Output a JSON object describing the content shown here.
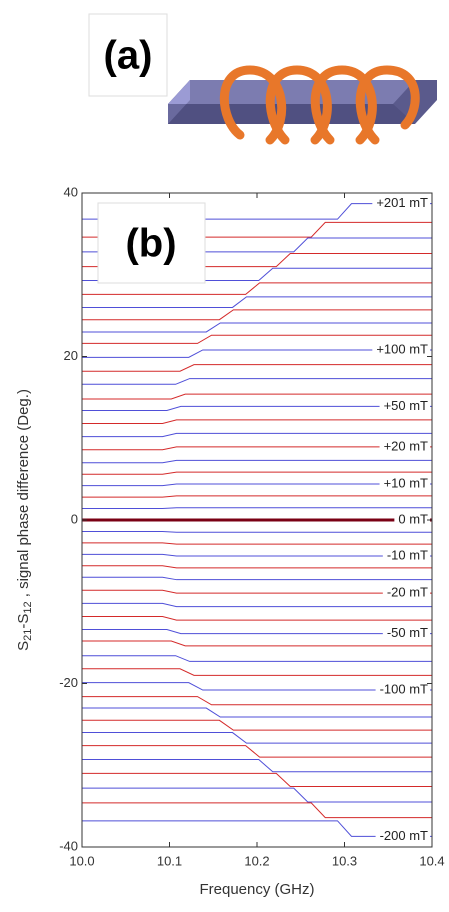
{
  "panel_a": {
    "label": "(a)"
  },
  "chart_data": {
    "type": "line",
    "panel_label": "(b)",
    "x_label": "Frequency (GHz)",
    "y_label_parts": [
      "S",
      "21",
      "-S",
      "12",
      " , signal phase difference (Deg.)"
    ],
    "xlim": [
      10.0,
      10.4
    ],
    "ylim": [
      -40,
      40
    ],
    "xticks": [
      {
        "value": 10.0,
        "label": "10.0"
      },
      10.1,
      10.2,
      10.3,
      {
        "value": 10.4,
        "label": "10.4"
      }
    ],
    "yticks": [
      -40,
      -20,
      0,
      20,
      40
    ],
    "series": [
      {
        "color": "#4f4fd8",
        "label": "+201 mT",
        "x": [
          10,
          10.292,
          10.308,
          10.4
        ],
        "values": [
          36.8,
          36.8,
          38.7,
          38.7
        ]
      },
      {
        "color": "#d42a2a",
        "x": [
          10,
          10.262,
          10.278,
          10.4
        ],
        "values": [
          34.6,
          34.6,
          36.4,
          36.4
        ]
      },
      {
        "color": "#4f4fd8",
        "x": [
          10,
          10.242,
          10.258,
          10.4
        ],
        "values": [
          32.8,
          32.8,
          34.5,
          34.5
        ]
      },
      {
        "color": "#d42a2a",
        "x": [
          10,
          10.222,
          10.238,
          10.4
        ],
        "values": [
          31,
          31,
          32.6,
          32.6
        ]
      },
      {
        "color": "#4f4fd8",
        "x": [
          10,
          10.202,
          10.218,
          10.4
        ],
        "values": [
          29.3,
          29.3,
          30.8,
          30.8
        ]
      },
      {
        "color": "#d42a2a",
        "x": [
          10,
          10.187,
          10.203,
          10.4
        ],
        "values": [
          27.6,
          27.6,
          29,
          29
        ]
      },
      {
        "color": "#4f4fd8",
        "x": [
          10,
          10.172,
          10.188,
          10.4
        ],
        "values": [
          26,
          26,
          27.3,
          27.3
        ]
      },
      {
        "color": "#d42a2a",
        "x": [
          10,
          10.157,
          10.173,
          10.4
        ],
        "values": [
          24.5,
          24.5,
          25.7,
          25.7
        ]
      },
      {
        "color": "#4f4fd8",
        "x": [
          10,
          10.142,
          10.158,
          10.4
        ],
        "values": [
          23,
          23,
          24.1,
          24.1
        ]
      },
      {
        "color": "#d42a2a",
        "x": [
          10,
          10.132,
          10.148,
          10.4
        ],
        "values": [
          21.6,
          21.6,
          22.6,
          22.6
        ]
      },
      {
        "color": "#4f4fd8",
        "label": "+100 mT",
        "x": [
          10,
          10.122,
          10.138,
          10.4
        ],
        "values": [
          19.9,
          19.9,
          20.8,
          20.8
        ]
      },
      {
        "color": "#d42a2a",
        "x": [
          10,
          10.112,
          10.128,
          10.4
        ],
        "values": [
          18.2,
          18.2,
          19,
          19
        ]
      },
      {
        "color": "#4f4fd8",
        "x": [
          10,
          10.107,
          10.123,
          10.4
        ],
        "values": [
          16.6,
          16.6,
          17.3,
          17.3
        ]
      },
      {
        "color": "#d42a2a",
        "x": [
          10,
          10.102,
          10.118,
          10.4
        ],
        "values": [
          14.8,
          14.8,
          15.4,
          15.4
        ]
      },
      {
        "color": "#4f4fd8",
        "label": "+50 mT",
        "x": [
          10,
          10.097,
          10.113,
          10.4
        ],
        "values": [
          13.4,
          13.4,
          13.9,
          13.9
        ]
      },
      {
        "color": "#d42a2a",
        "x": [
          10,
          10.092,
          10.108,
          10.4
        ],
        "values": [
          11.8,
          11.8,
          12.25,
          12.25
        ]
      },
      {
        "color": "#4f4fd8",
        "x": [
          10,
          10.092,
          10.108,
          10.4
        ],
        "values": [
          10.2,
          10.2,
          10.6,
          10.6
        ]
      },
      {
        "color": "#d42a2a",
        "label": "+20 mT",
        "x": [
          10,
          10.092,
          10.108,
          10.4
        ],
        "values": [
          8.6,
          8.6,
          8.95,
          8.95
        ]
      },
      {
        "color": "#4f4fd8",
        "x": [
          10,
          10.092,
          10.108,
          10.4
        ],
        "values": [
          7,
          7,
          7.3,
          7.3
        ]
      },
      {
        "color": "#d42a2a",
        "x": [
          10,
          10.092,
          10.108,
          10.4
        ],
        "values": [
          5.6,
          5.6,
          5.85,
          5.85
        ]
      },
      {
        "color": "#4f4fd8",
        "label": "+10 mT",
        "x": [
          10,
          10.092,
          10.108,
          10.4
        ],
        "values": [
          4.2,
          4.2,
          4.4,
          4.4
        ]
      },
      {
        "color": "#d42a2a",
        "x": [
          10,
          10.092,
          10.108,
          10.4
        ],
        "values": [
          2.8,
          2.8,
          2.95,
          2.95
        ]
      },
      {
        "color": "#4f4fd8",
        "x": [
          10,
          10.092,
          10.108,
          10.4
        ],
        "values": [
          1.4,
          1.4,
          1.5,
          1.5
        ]
      },
      {
        "color": "#7a0014",
        "label": "0 mT",
        "x": [
          10,
          10.092,
          10.108,
          10.4
        ],
        "values": [
          0,
          0,
          0,
          0
        ]
      },
      {
        "color": "#4f4fd8",
        "x": [
          10,
          10.092,
          10.108,
          10.4
        ],
        "values": [
          -1.4,
          -1.4,
          -1.5,
          -1.5
        ]
      },
      {
        "color": "#d42a2a",
        "x": [
          10,
          10.092,
          10.108,
          10.4
        ],
        "values": [
          -2.8,
          -2.8,
          -2.95,
          -2.95
        ]
      },
      {
        "color": "#4f4fd8",
        "label": "-10 mT",
        "x": [
          10,
          10.092,
          10.108,
          10.4
        ],
        "values": [
          -4.2,
          -4.2,
          -4.4,
          -4.4
        ]
      },
      {
        "color": "#d42a2a",
        "x": [
          10,
          10.092,
          10.108,
          10.4
        ],
        "values": [
          -5.6,
          -5.6,
          -5.85,
          -5.85
        ]
      },
      {
        "color": "#4f4fd8",
        "x": [
          10,
          10.092,
          10.108,
          10.4
        ],
        "values": [
          -7,
          -7,
          -7.3,
          -7.3
        ]
      },
      {
        "color": "#d42a2a",
        "label": "-20 mT",
        "x": [
          10,
          10.092,
          10.108,
          10.4
        ],
        "values": [
          -8.6,
          -8.6,
          -8.95,
          -8.95
        ]
      },
      {
        "color": "#4f4fd8",
        "x": [
          10,
          10.092,
          10.108,
          10.4
        ],
        "values": [
          -10.2,
          -10.2,
          -10.6,
          -10.6
        ]
      },
      {
        "color": "#d42a2a",
        "x": [
          10,
          10.092,
          10.108,
          10.4
        ],
        "values": [
          -11.8,
          -11.8,
          -12.25,
          -12.25
        ]
      },
      {
        "color": "#4f4fd8",
        "label": "-50 mT",
        "x": [
          10,
          10.097,
          10.113,
          10.4
        ],
        "values": [
          -13.4,
          -13.4,
          -13.9,
          -13.9
        ]
      },
      {
        "color": "#d42a2a",
        "x": [
          10,
          10.102,
          10.118,
          10.4
        ],
        "values": [
          -14.8,
          -14.8,
          -15.4,
          -15.4
        ]
      },
      {
        "color": "#4f4fd8",
        "x": [
          10,
          10.107,
          10.123,
          10.4
        ],
        "values": [
          -16.6,
          -16.6,
          -17.3,
          -17.3
        ]
      },
      {
        "color": "#d42a2a",
        "x": [
          10,
          10.112,
          10.128,
          10.4
        ],
        "values": [
          -18.2,
          -18.2,
          -19,
          -19
        ]
      },
      {
        "color": "#4f4fd8",
        "label": "-100 mT",
        "x": [
          10,
          10.122,
          10.138,
          10.4
        ],
        "values": [
          -19.9,
          -19.9,
          -20.8,
          -20.8
        ]
      },
      {
        "color": "#d42a2a",
        "x": [
          10,
          10.132,
          10.148,
          10.4
        ],
        "values": [
          -21.6,
          -21.6,
          -22.6,
          -22.6
        ]
      },
      {
        "color": "#4f4fd8",
        "x": [
          10,
          10.142,
          10.158,
          10.4
        ],
        "values": [
          -23,
          -23,
          -24.1,
          -24.1
        ]
      },
      {
        "color": "#d42a2a",
        "x": [
          10,
          10.157,
          10.173,
          10.4
        ],
        "values": [
          -24.5,
          -24.5,
          -25.7,
          -25.7
        ]
      },
      {
        "color": "#4f4fd8",
        "x": [
          10,
          10.172,
          10.188,
          10.4
        ],
        "values": [
          -26,
          -26,
          -27.3,
          -27.3
        ]
      },
      {
        "color": "#d42a2a",
        "x": [
          10,
          10.187,
          10.203,
          10.4
        ],
        "values": [
          -27.6,
          -27.6,
          -29,
          -29
        ]
      },
      {
        "color": "#4f4fd8",
        "x": [
          10,
          10.202,
          10.218,
          10.4
        ],
        "values": [
          -29.3,
          -29.3,
          -30.8,
          -30.8
        ]
      },
      {
        "color": "#d42a2a",
        "x": [
          10,
          10.222,
          10.238,
          10.4
        ],
        "values": [
          -31,
          -31,
          -32.6,
          -32.6
        ]
      },
      {
        "color": "#4f4fd8",
        "x": [
          10,
          10.242,
          10.258,
          10.4
        ],
        "values": [
          -32.8,
          -32.8,
          -34.5,
          -34.5
        ]
      },
      {
        "color": "#d42a2a",
        "x": [
          10,
          10.262,
          10.278,
          10.4
        ],
        "values": [
          -34.6,
          -34.6,
          -36.4,
          -36.4
        ]
      },
      {
        "color": "#4f4fd8",
        "label": "-200 mT",
        "x": [
          10,
          10.292,
          10.308,
          10.4
        ],
        "values": [
          -36.8,
          -36.8,
          -38.7,
          -38.7
        ]
      }
    ]
  }
}
